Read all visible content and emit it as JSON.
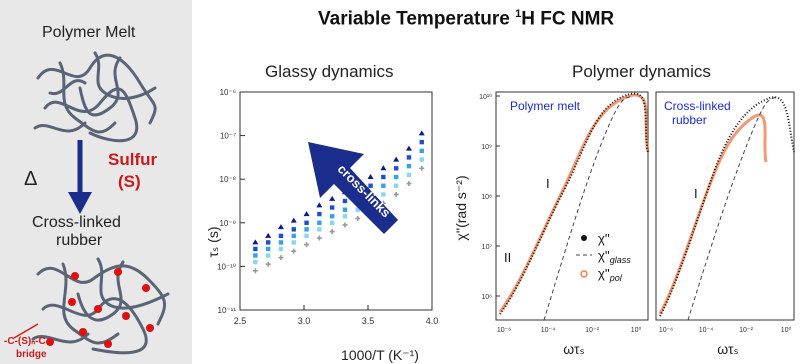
{
  "main_title": {
    "prefix": "Variable Temperature ",
    "sup": "1",
    "suffix": "H FC NMR"
  },
  "left": {
    "top_label": "Polymer Melt",
    "delta": "Δ",
    "sulfur_line1": "Sulfur",
    "sulfur_line2": "(S)",
    "bottom_label_line1": "Cross-linked",
    "bottom_label_line2": "rubber",
    "bridge_line1": "-C-(S)ₙ-C-",
    "bridge_line2": "bridge"
  },
  "glassy": {
    "title": "Glassy dynamics",
    "ylabel": "τₛ (s)",
    "xlabel": "1000/T (K⁻¹)",
    "arrow_label": "cross-links",
    "xticks": [
      "2.5",
      "3.0",
      "3.5",
      "4.0"
    ],
    "yticks": [
      "10⁻⁶",
      "10⁻⁷",
      "10⁻⁸",
      "10⁻⁹",
      "10⁻¹⁰",
      "10⁻¹¹"
    ]
  },
  "polymer": {
    "title": "Polymer dynamics",
    "ylabel": "χ''(rad s⁻²)",
    "xlabel": "ωτₛ",
    "panel1_label": "Polymer melt",
    "panel2_label_line1": "Cross-linked",
    "panel2_label_line2": "rubber",
    "region_I": "I",
    "region_II": "II",
    "legend": [
      "χ''",
      "χ''",
      "χ''"
    ],
    "legend_sub": [
      "",
      "glass",
      "pol"
    ],
    "xticks": [
      "10⁻⁶",
      "10⁻⁴",
      "10⁻²",
      "10⁰"
    ],
    "yticks": [
      "10¹⁰",
      "10⁹",
      "10⁸",
      "10⁷",
      "10⁶"
    ]
  },
  "colors": {
    "accent": "#1a2c8c",
    "sulfur": "#cc1a1a",
    "orange": "#f08050",
    "chain": "#5a6478"
  },
  "chart_data": {
    "type": "scatter",
    "x": [
      2.62,
      2.72,
      2.82,
      2.92,
      3.02,
      3.12,
      3.22,
      3.32,
      3.42,
      3.52,
      3.62,
      3.72,
      3.82,
      3.92
    ],
    "series": [
      {
        "color": "#0a1a8a",
        "values": [
          -9.45,
          -9.3,
          -9.1,
          -8.95,
          -8.8,
          -8.6,
          -8.45,
          -8.3,
          -8.1,
          -7.95,
          -7.75,
          -7.55,
          -7.3,
          -6.95
        ]
      },
      {
        "color": "#1e4fd0",
        "values": [
          -9.6,
          -9.45,
          -9.3,
          -9.15,
          -9.0,
          -8.8,
          -8.65,
          -8.5,
          -8.3,
          -8.15,
          -7.95,
          -7.75,
          -7.5,
          -7.15
        ]
      },
      {
        "color": "#3aa0e6",
        "values": [
          -9.75,
          -9.6,
          -9.45,
          -9.3,
          -9.15,
          -9.0,
          -8.85,
          -8.7,
          -8.5,
          -8.35,
          -8.15,
          -7.95,
          -7.7,
          -7.35
        ]
      },
      {
        "color": "#8ad6f0",
        "values": [
          -9.9,
          -9.75,
          -9.6,
          -9.45,
          -9.3,
          -9.15,
          -9.0,
          -8.85,
          -8.7,
          -8.55,
          -8.35,
          -8.15,
          -7.9,
          -7.55
        ]
      },
      {
        "color": "#999999",
        "values": [
          -10.1,
          -9.95,
          -9.8,
          -9.65,
          -9.5,
          -9.35,
          -9.2,
          -9.05,
          -8.9,
          -8.75,
          -8.55,
          -8.35,
          -8.1,
          -7.75
        ]
      }
    ],
    "xlim": [
      2.5,
      4.0
    ],
    "ylim": [
      -11,
      -6
    ],
    "log_y": true
  }
}
